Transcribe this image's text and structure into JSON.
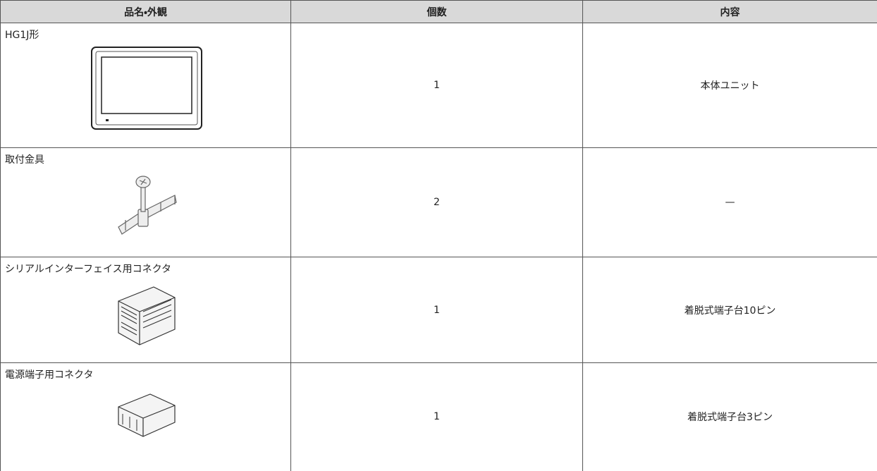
{
  "table": {
    "header": [
      "品名・外観",
      "個数",
      "内容"
    ],
    "rows": [
      [
        "HG1J形",
        "1",
        "本体ユニット"
      ],
      [
        "取付金具",
        "2",
        "—"
      ],
      [
        "シリアルインターフェイス用コネクタ",
        "1",
        "着脱式端子台10ピン"
      ],
      [
        "電源端子用コネクタ",
        "1",
        "着脱式端子台3ピン"
      ]
    ]
  }
}
